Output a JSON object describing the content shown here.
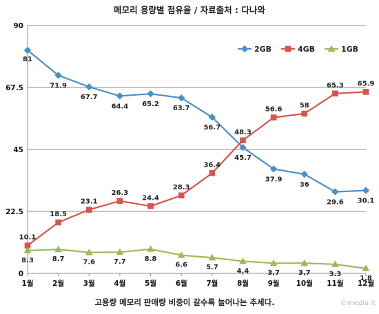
{
  "chart_data": {
    "type": "line",
    "title": "메모리 용량별 점유율 / 자료출처 : 다나와",
    "categories": [
      "1월",
      "2월",
      "3월",
      "4월",
      "5월",
      "6월",
      "7월",
      "8월",
      "9월",
      "10월",
      "11월",
      "12월"
    ],
    "ylim": [
      0,
      90
    ],
    "yticks": [
      "0",
      "22.5",
      "45",
      "67.5",
      "90"
    ],
    "grid": true,
    "legend_position": "top-right",
    "series": [
      {
        "name": "2GB",
        "color": "#4a90c8",
        "marker": "diamond",
        "values": [
          81,
          71.9,
          67.7,
          64.4,
          65.2,
          63.7,
          56.7,
          45.7,
          37.9,
          36,
          29.6,
          30.1
        ]
      },
      {
        "name": "4GB",
        "color": "#d9534f",
        "marker": "square",
        "values": [
          10.1,
          18.5,
          23.1,
          26.3,
          24.4,
          28.3,
          36.4,
          48.3,
          56.6,
          58,
          65.3,
          65.9
        ]
      },
      {
        "name": "1GB",
        "color": "#9bbb59",
        "marker": "triangle",
        "values": [
          8.3,
          8.7,
          7.6,
          7.7,
          8.8,
          6.6,
          5.7,
          4.4,
          3.7,
          3.7,
          3.3,
          1.8
        ]
      }
    ],
    "caption": "고용량 메모리 판매량 비중이 갈수록 늘어나는 추세다.",
    "watermark": "©media it"
  }
}
